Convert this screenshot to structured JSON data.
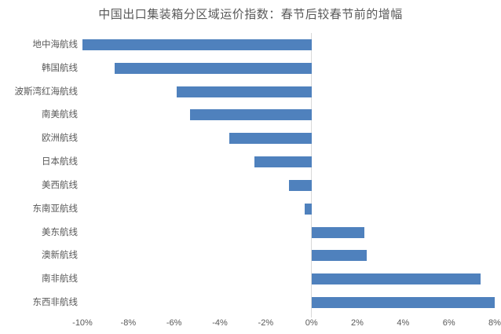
{
  "chart_data": {
    "type": "bar",
    "orientation": "horizontal",
    "title": "中国出口集装箱分区域运价指数：春节后较春节前的增幅",
    "categories": [
      "地中海航线",
      "韩国航线",
      "波斯湾红海航线",
      "南美航线",
      "欧洲航线",
      "日本航线",
      "美西航线",
      "东南亚航线",
      "美东航线",
      "澳新航线",
      "南非航线",
      "东西非航线"
    ],
    "values": [
      -10.0,
      -8.6,
      -5.9,
      -5.3,
      -3.6,
      -2.5,
      -1.0,
      -0.3,
      2.3,
      2.4,
      7.4,
      8.0
    ],
    "unit": "%",
    "xlim": [
      -10,
      8
    ],
    "x_tick_values": [
      -10,
      -8,
      -6,
      -4,
      -2,
      0,
      2,
      4,
      6,
      8
    ],
    "x_tick_labels": [
      "-10%",
      "-8%",
      "-6%",
      "-4%",
      "-2%",
      "0%",
      "2%",
      "4%",
      "6%",
      "8%"
    ],
    "grid": "zero-line-only",
    "legend": "none",
    "bar_color": "#4F81BD",
    "gridline_color": "#D9D9D9",
    "text_color": "#595959"
  }
}
